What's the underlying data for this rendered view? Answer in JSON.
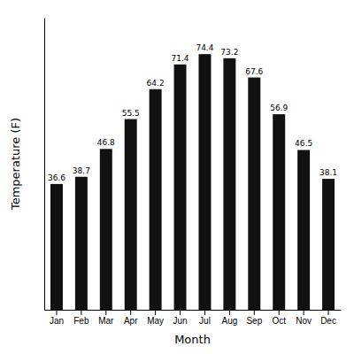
{
  "chart_data": {
    "type": "bar",
    "categories": [
      "Jan",
      "Feb",
      "Mar",
      "Apr",
      "May",
      "Jun",
      "Jul",
      "Aug",
      "Sep",
      "Oct",
      "Nov",
      "Dec"
    ],
    "values": [
      36.6,
      38.7,
      46.8,
      55.5,
      64.2,
      71.4,
      74.4,
      73.2,
      67.6,
      56.9,
      46.5,
      38.1
    ],
    "color": "#111111",
    "xlabel": "Month",
    "ylabel": "Temperature (F)",
    "ylim": [
      0,
      85
    ],
    "yticks": [],
    "grid": false,
    "data_labels": true,
    "tick_labels": "x"
  }
}
